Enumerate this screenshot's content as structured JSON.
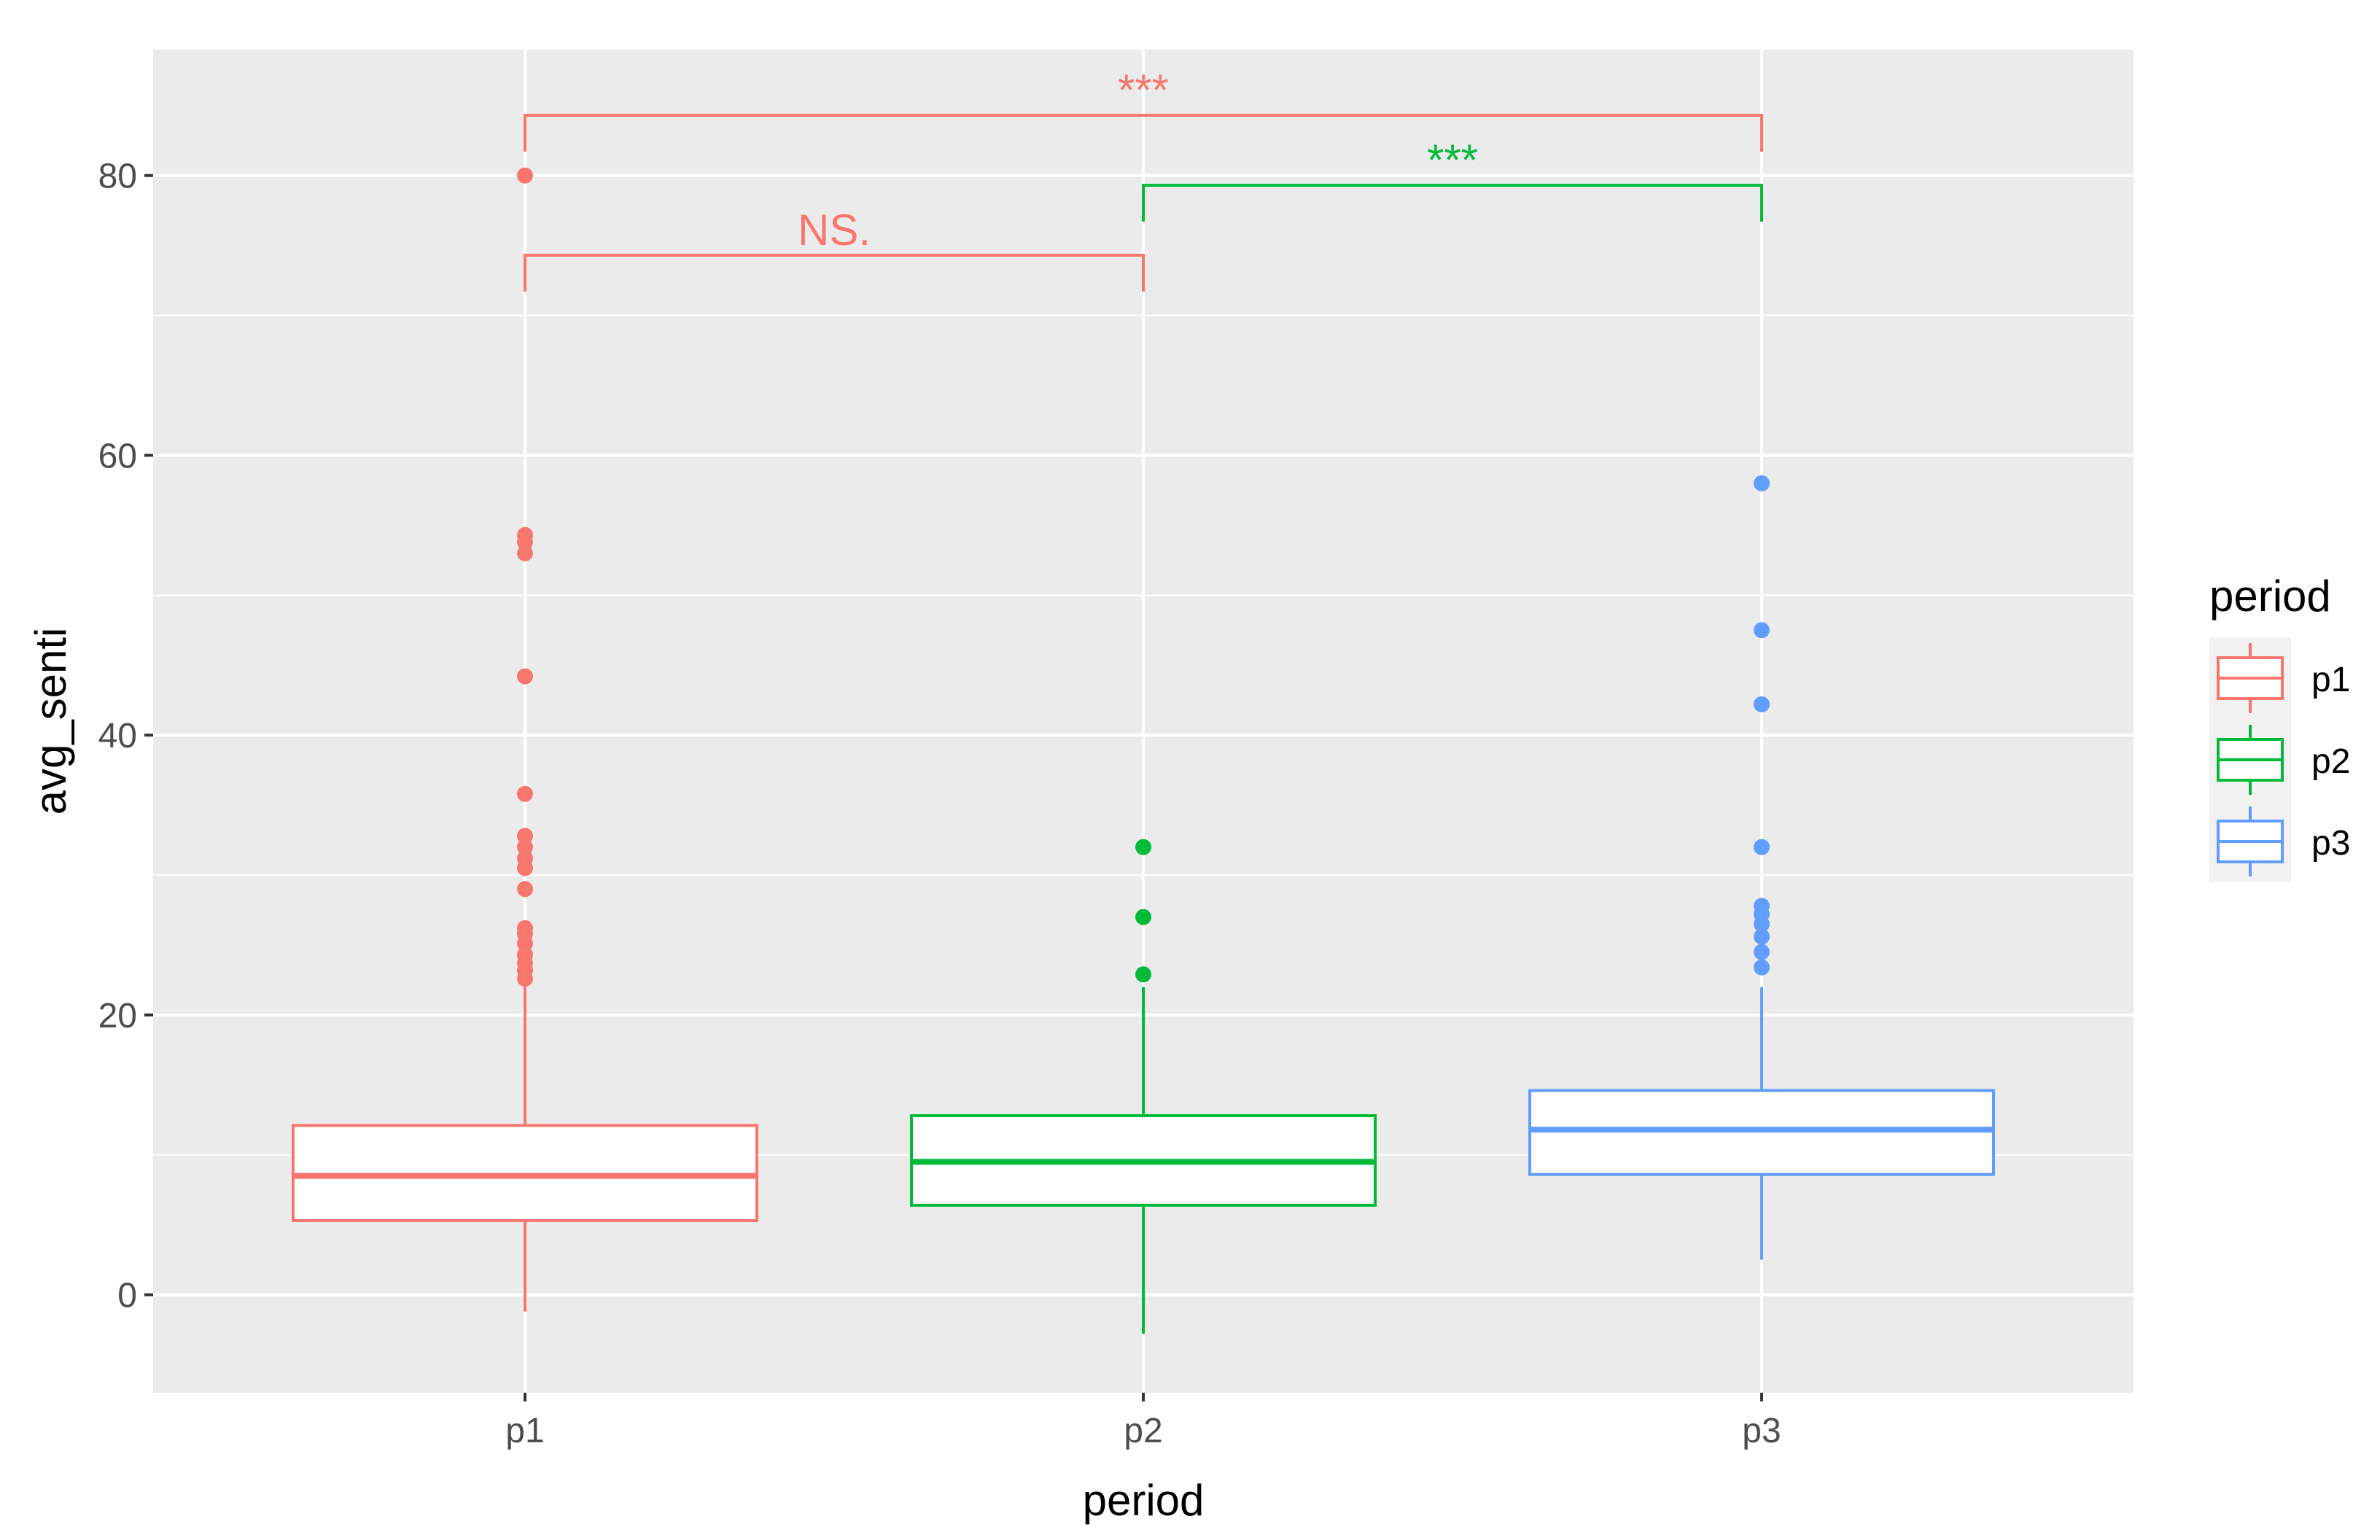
{
  "chart_data": {
    "type": "boxplot",
    "xlabel": "period",
    "ylabel": "avg_senti",
    "categories": [
      "p1",
      "p2",
      "p3"
    ],
    "y_ticks": [
      0,
      20,
      40,
      60,
      80
    ],
    "y_tick_labels": [
      "0",
      "20",
      "40",
      "60",
      "80"
    ],
    "ylim": [
      -7,
      89
    ],
    "grid": true,
    "legend": {
      "title": "period",
      "position": "right",
      "entries": [
        "p1",
        "p2",
        "p3"
      ]
    },
    "colors": {
      "p1": "#F8766D",
      "p2": "#00BA38",
      "p3": "#619CFF"
    },
    "boxes": [
      {
        "group": "p1",
        "whisker_low": -1.2,
        "q1": 5.3,
        "median": 8.5,
        "q3": 12.1,
        "whisker_high": 22.4,
        "outliers": [
          22.6,
          23.2,
          23.7,
          24.3,
          25.1,
          25.8,
          26.2,
          29.0,
          30.5,
          31.2,
          32.0,
          32.8,
          35.8,
          44.2,
          53.0,
          53.8,
          54.3,
          80.0
        ]
      },
      {
        "group": "p2",
        "whisker_low": -2.8,
        "q1": 6.4,
        "median": 9.5,
        "q3": 12.8,
        "whisker_high": 22.0,
        "outliers": [
          22.9,
          27.0,
          32.0
        ]
      },
      {
        "group": "p3",
        "whisker_low": 2.5,
        "q1": 8.6,
        "median": 11.8,
        "q3": 14.6,
        "whisker_high": 22.0,
        "outliers": [
          23.4,
          24.5,
          25.6,
          26.5,
          27.2,
          27.8,
          32.0,
          42.2,
          47.5,
          58.0
        ]
      }
    ],
    "comparisons": [
      {
        "from": "p1",
        "to": "p2",
        "label": "NS.",
        "y": 74.3,
        "tip_low": 71.7,
        "color": "#F8766D"
      },
      {
        "from": "p2",
        "to": "p3",
        "label": "***",
        "y": 79.3,
        "tip_low": 76.7,
        "color": "#00BA38"
      },
      {
        "from": "p1",
        "to": "p3",
        "label": "***",
        "y": 84.3,
        "tip_low": 81.7,
        "color": "#F8766D"
      }
    ]
  }
}
